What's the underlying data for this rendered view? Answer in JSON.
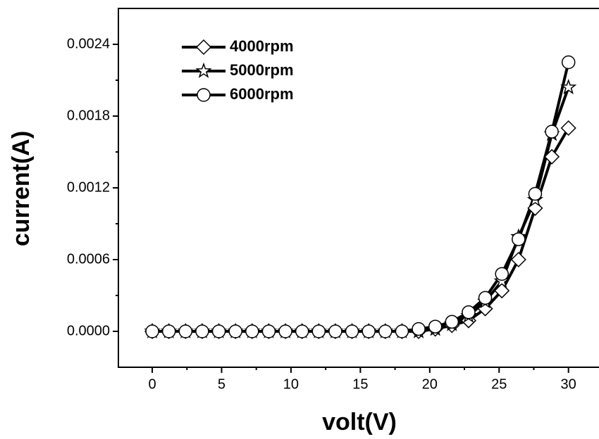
{
  "chart_data": {
    "type": "line",
    "xlabel": "volt(V)",
    "ylabel": "current(A)",
    "x": [
      0,
      1.2,
      2.4,
      3.6,
      4.8,
      6,
      7.2,
      8.4,
      9.6,
      10.8,
      12,
      13.2,
      14.4,
      15.6,
      16.8,
      18,
      19.2,
      20.4,
      21.6,
      22.8,
      24,
      25.2,
      26.4,
      27.6,
      28.8,
      30
    ],
    "series": [
      {
        "name": "4000rpm",
        "color": "#000000",
        "marker": "diamond",
        "values": [
          0,
          0,
          0,
          0,
          0,
          0,
          0,
          0,
          0,
          0,
          0,
          0,
          0,
          0,
          0,
          0,
          0,
          2e-05,
          5e-05,
          9e-05,
          0.00019,
          0.00034,
          0.0006,
          0.00103,
          0.00146,
          0.0017
        ]
      },
      {
        "name": "5000rpm",
        "color": "#000000",
        "marker": "star",
        "values": [
          0,
          0,
          0,
          0,
          0,
          0,
          0,
          0,
          0,
          0,
          0,
          0,
          0,
          0,
          0,
          0,
          0,
          2e-05,
          6e-05,
          0.00013,
          0.00025,
          0.00042,
          0.00079,
          0.0011,
          0.00165,
          0.00204
        ]
      },
      {
        "name": "6000rpm",
        "color": "#000000",
        "marker": "circle",
        "values": [
          0,
          0,
          0,
          0,
          0,
          0,
          0,
          0,
          0,
          0,
          0,
          0,
          0,
          0,
          0,
          0,
          2e-05,
          4e-05,
          8e-05,
          0.00016,
          0.00028,
          0.00048,
          0.00077,
          0.00115,
          0.00167,
          0.00225
        ]
      }
    ],
    "xlim": [
      -2.44,
      32.2
    ],
    "xticks": [
      0,
      5,
      10,
      15,
      20,
      25,
      30
    ],
    "ylim": [
      -0.0003,
      0.0027
    ],
    "yticks": [
      {
        "value": 0,
        "label": "0.0000"
      },
      0.0006,
      0.0012,
      0.0018,
      0.0024
    ],
    "legend": "upper left",
    "grid": false
  }
}
